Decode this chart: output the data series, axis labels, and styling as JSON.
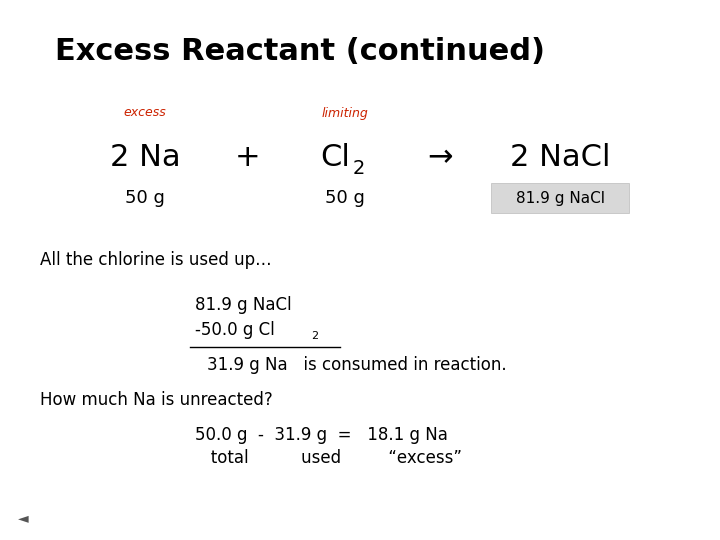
{
  "title": "Excess Reactant (continued)",
  "title_fontsize": 22,
  "bg_color": "#ffffff",
  "text_color": "#000000",
  "red_color": "#cc2200",
  "gray_bg": "#d8d8d8",
  "excess_label": "excess",
  "limiting_label": "limiting",
  "na_text": "2 Na",
  "plus_text": "+",
  "cl2_main": "Cl",
  "cl2_sub": "2",
  "arrow_text": "→",
  "nacl_text": "2 NaCl",
  "na_50g": "50 g",
  "cl2_50g": "50 g",
  "nacl_result": "81.9 g NaCl",
  "line1": "All the chlorine is used up…",
  "line2a": "81.9 g NaCl",
  "line2b_main": "-50.0 g Cl",
  "line2b_sub": "2",
  "line3": "31.9 g Na   is consumed in reaction.",
  "line4": "How much Na is unreacted?",
  "line5a": "50.0 g  -  31.9 g  =   18.1 g Na",
  "line5b": "   total          used         “excess”"
}
